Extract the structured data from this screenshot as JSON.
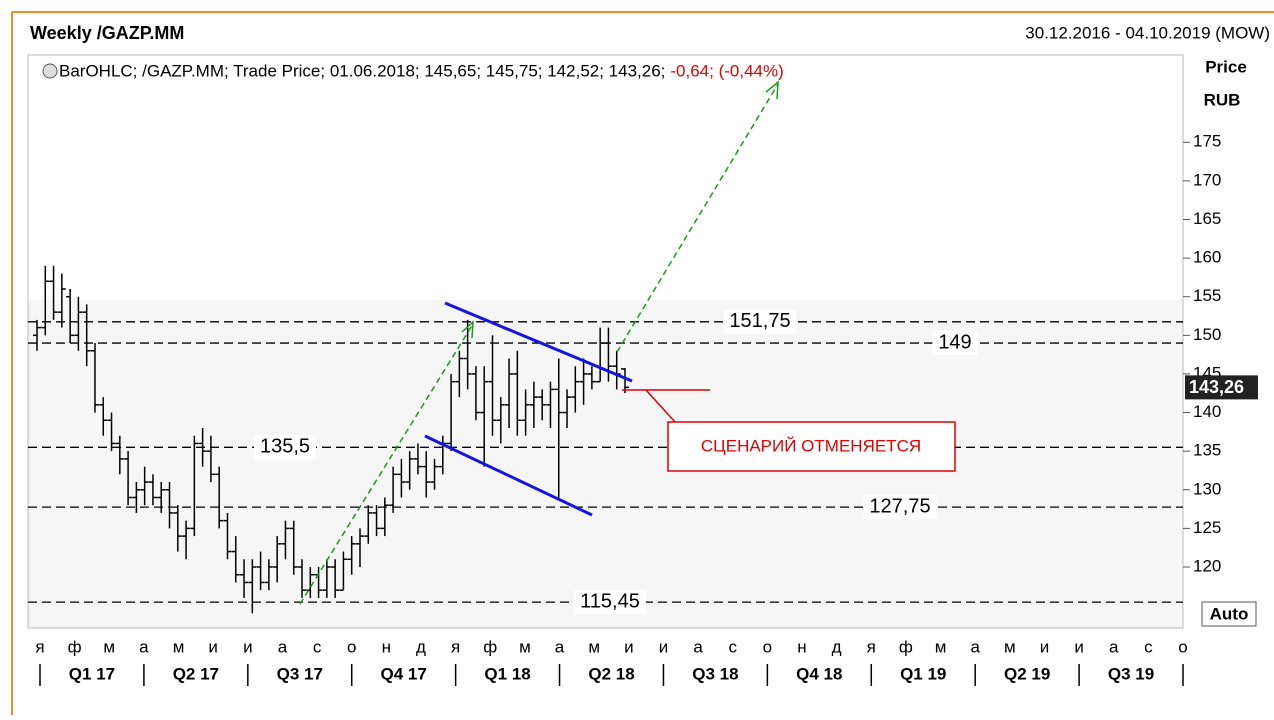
{
  "header": {
    "title": "Weekly /GAZP.MM",
    "range": "30.12.2016 - 04.10.2019 (MOW)"
  },
  "chart_data": {
    "type": "ohlc",
    "legend_text": "BarOHLC; /GAZP.MM; Trade Price; 01.06.2018; 145,65; 145,75; 142,52; 143,26;",
    "legend_change": "-0,64; (-0,44%)",
    "y_axis_title": [
      "Price",
      "RUB"
    ],
    "ylim": [
      112.1,
      186.3
    ],
    "yticks": [
      120,
      125,
      130,
      135,
      140,
      145,
      150,
      155,
      160,
      165,
      170,
      175
    ],
    "last_price": {
      "value": 143.26,
      "label": "143,26"
    },
    "levels": [
      {
        "value": 151.75,
        "label": "151,75"
      },
      {
        "value": 149,
        "label": "149"
      },
      {
        "value": 135.5,
        "label": "135,5"
      },
      {
        "value": 127.75,
        "label": "127,75"
      },
      {
        "value": 115.45,
        "label": "115,45"
      }
    ],
    "annotation": "СЦЕНАРИЙ ОТМЕНЯЕТСЯ",
    "auto_label": "Auto",
    "months": [
      "я",
      "ф",
      "м",
      "а",
      "м",
      "и",
      "и",
      "а",
      "с",
      "о",
      "н",
      "д",
      "я",
      "ф",
      "м",
      "а",
      "м",
      "и",
      "и",
      "а",
      "с",
      "о",
      "н",
      "д",
      "я",
      "ф",
      "м",
      "а",
      "м",
      "и",
      "и",
      "а",
      "с",
      "о"
    ],
    "quarters": [
      "Q1 17",
      "Q2 17",
      "Q3 17",
      "Q4 17",
      "Q1 18",
      "Q2 18",
      "Q3 18",
      "Q4 18",
      "Q1 19",
      "Q2 19",
      "Q3 19"
    ],
    "color": "#000000",
    "bars": [
      {
        "open": 150,
        "high": 152,
        "low": 148,
        "close": 151
      },
      {
        "open": 151,
        "high": 159,
        "low": 150,
        "close": 157
      },
      {
        "open": 157,
        "high": 159,
        "low": 152,
        "close": 153
      },
      {
        "open": 153,
        "high": 158,
        "low": 151,
        "close": 156
      },
      {
        "open": 155,
        "high": 156,
        "low": 149,
        "close": 150
      },
      {
        "open": 150,
        "high": 155,
        "low": 148,
        "close": 153
      },
      {
        "open": 153,
        "high": 154,
        "low": 146,
        "close": 148
      },
      {
        "open": 148,
        "high": 149,
        "low": 140,
        "close": 141
      },
      {
        "open": 141,
        "high": 142,
        "low": 137,
        "close": 139
      },
      {
        "open": 139,
        "high": 140,
        "low": 135,
        "close": 136
      },
      {
        "open": 136,
        "high": 137,
        "low": 132,
        "close": 134
      },
      {
        "open": 134,
        "high": 135,
        "low": 128,
        "close": 129
      },
      {
        "open": 129,
        "high": 131,
        "low": 127,
        "close": 130
      },
      {
        "open": 130,
        "high": 133,
        "low": 128,
        "close": 131
      },
      {
        "open": 131,
        "high": 132,
        "low": 128,
        "close": 129
      },
      {
        "open": 129,
        "high": 131,
        "low": 127,
        "close": 130
      },
      {
        "open": 130,
        "high": 131,
        "low": 125,
        "close": 127
      },
      {
        "open": 127,
        "high": 128,
        "low": 122,
        "close": 124
      },
      {
        "open": 124,
        "high": 126,
        "low": 121,
        "close": 125
      },
      {
        "open": 125,
        "high": 137,
        "low": 124,
        "close": 136
      },
      {
        "open": 136,
        "high": 138,
        "low": 133,
        "close": 135
      },
      {
        "open": 135,
        "high": 137,
        "low": 131,
        "close": 132
      },
      {
        "open": 132,
        "high": 133,
        "low": 125,
        "close": 126
      },
      {
        "open": 126,
        "high": 127,
        "low": 121,
        "close": 122
      },
      {
        "open": 122,
        "high": 124,
        "low": 118,
        "close": 119
      },
      {
        "open": 119,
        "high": 121,
        "low": 116,
        "close": 118
      },
      {
        "open": 118,
        "high": 121,
        "low": 114,
        "close": 120
      },
      {
        "open": 120,
        "high": 122,
        "low": 117,
        "close": 118
      },
      {
        "open": 118,
        "high": 121,
        "low": 117,
        "close": 120
      },
      {
        "open": 120,
        "high": 124,
        "low": 118,
        "close": 123
      },
      {
        "open": 123,
        "high": 126,
        "low": 121,
        "close": 125
      },
      {
        "open": 125,
        "high": 126,
        "low": 119,
        "close": 120
      },
      {
        "open": 120,
        "high": 121,
        "low": 116,
        "close": 117
      },
      {
        "open": 117,
        "high": 120,
        "low": 116,
        "close": 119
      },
      {
        "open": 119,
        "high": 120,
        "low": 116,
        "close": 117
      },
      {
        "open": 117,
        "high": 121,
        "low": 116,
        "close": 120
      },
      {
        "open": 120,
        "high": 121,
        "low": 116,
        "close": 117
      },
      {
        "open": 117,
        "high": 122,
        "low": 117,
        "close": 121
      },
      {
        "open": 121,
        "high": 124,
        "low": 119,
        "close": 123
      },
      {
        "open": 123,
        "high": 125,
        "low": 120,
        "close": 124
      },
      {
        "open": 124,
        "high": 128,
        "low": 123,
        "close": 127
      },
      {
        "open": 127,
        "high": 128,
        "low": 124,
        "close": 125
      },
      {
        "open": 125,
        "high": 129,
        "low": 124,
        "close": 128
      },
      {
        "open": 128,
        "high": 133,
        "low": 127,
        "close": 132
      },
      {
        "open": 132,
        "high": 134,
        "low": 129,
        "close": 131
      },
      {
        "open": 131,
        "high": 135,
        "low": 130,
        "close": 134
      },
      {
        "open": 134,
        "high": 136,
        "low": 132,
        "close": 133
      },
      {
        "open": 133,
        "high": 135,
        "low": 129,
        "close": 131
      },
      {
        "open": 131,
        "high": 134,
        "low": 130,
        "close": 133
      },
      {
        "open": 133,
        "high": 137,
        "low": 132,
        "close": 136
      },
      {
        "open": 136,
        "high": 145,
        "low": 135,
        "close": 144
      },
      {
        "open": 144,
        "high": 148,
        "low": 142,
        "close": 147
      },
      {
        "open": 147,
        "high": 152,
        "low": 143,
        "close": 145
      },
      {
        "open": 145,
        "high": 146,
        "low": 139,
        "close": 140
      },
      {
        "open": 140,
        "high": 146,
        "low": 133,
        "close": 144
      },
      {
        "open": 144,
        "high": 150,
        "low": 137,
        "close": 139
      },
      {
        "open": 139,
        "high": 142,
        "low": 136,
        "close": 141
      },
      {
        "open": 141,
        "high": 147,
        "low": 138,
        "close": 145
      },
      {
        "open": 145,
        "high": 148,
        "low": 137,
        "close": 139
      },
      {
        "open": 139,
        "high": 143,
        "low": 137,
        "close": 141
      },
      {
        "open": 141,
        "high": 144,
        "low": 138,
        "close": 142
      },
      {
        "open": 142,
        "high": 143,
        "low": 139,
        "close": 141
      },
      {
        "open": 141,
        "high": 144,
        "low": 138,
        "close": 143
      },
      {
        "open": 143,
        "high": 147,
        "low": 129,
        "close": 140
      },
      {
        "open": 140,
        "high": 143,
        "low": 138,
        "close": 142
      },
      {
        "open": 142,
        "high": 146,
        "low": 140,
        "close": 144
      },
      {
        "open": 144,
        "high": 147,
        "low": 141,
        "close": 145
      },
      {
        "open": 145,
        "high": 146,
        "low": 143,
        "close": 144
      },
      {
        "open": 144,
        "high": 151,
        "low": 144,
        "close": 149
      },
      {
        "open": 149,
        "high": 151,
        "low": 144,
        "close": 146
      },
      {
        "open": 146,
        "high": 148,
        "low": 143,
        "close": 145
      },
      {
        "open": 145.65,
        "high": 145.75,
        "low": 142.52,
        "close": 143.26
      }
    ]
  }
}
